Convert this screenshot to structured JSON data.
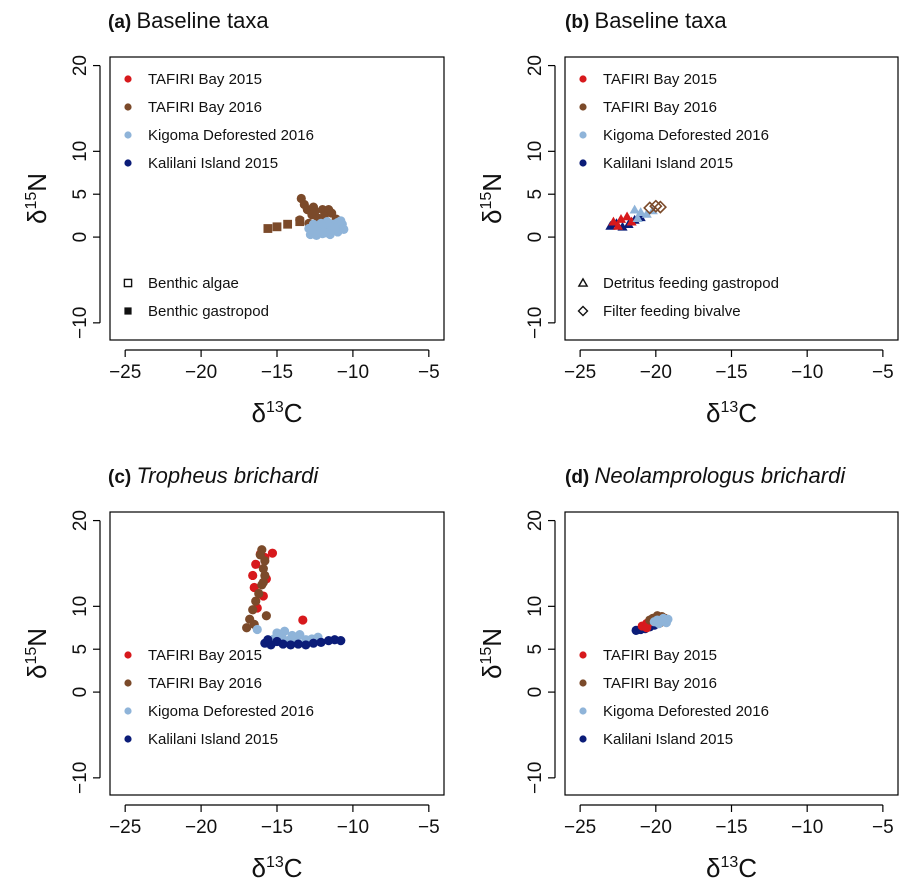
{
  "figure": {
    "colors": {
      "TAFIRI Bay 2015": "#d7191c",
      "TAFIRI Bay 2016": "#7b4a2a",
      "Kigoma Deforested 2016": "#8fb4d9",
      "Kalilani Island 2015": "#0b1c78"
    }
  },
  "chart_data": [
    {
      "type": "scatter",
      "panel": "(a)",
      "title": "Baseline taxa",
      "title_italic": false,
      "xlabel": "δ13C",
      "ylabel": "δ15N",
      "xlim": [
        -26,
        -4
      ],
      "ylim": [
        -12,
        21
      ],
      "xticks": [
        "−25",
        "−20",
        "−15",
        "−10",
        "−5"
      ],
      "xtick_values": [
        -25,
        -20,
        -15,
        -10,
        -5
      ],
      "yticks": [
        "20",
        "10",
        "5",
        "0",
        "−10"
      ],
      "ytick_values": [
        20,
        10,
        5,
        0,
        -10
      ],
      "grid": false,
      "legend": {
        "sites_position": "top-left",
        "sites": [
          "TAFIRI Bay 2015",
          "TAFIRI Bay 2016",
          "Kigoma Deforested 2016",
          "Kalilani Island 2015"
        ],
        "taxa_position": "bottom-left",
        "taxa": [
          {
            "label": "Benthic algae",
            "shape": "square-open"
          },
          {
            "label": "Benthic gastropod",
            "shape": "square-filled"
          }
        ]
      },
      "series": [
        {
          "name": "TAFIRI Bay 2016",
          "shape": "circle",
          "points": [
            [
              -13.4,
              4.5
            ],
            [
              -13.2,
              3.8
            ],
            [
              -13.0,
              3.2
            ],
            [
              -12.7,
              2.6
            ],
            [
              -12.3,
              2.2
            ],
            [
              -12.0,
              3.2
            ],
            [
              -11.8,
              3.0
            ],
            [
              -11.6,
              3.2
            ],
            [
              -11.4,
              2.8
            ],
            [
              -11.1,
              2.1
            ],
            [
              -12.9,
              1.6
            ],
            [
              -12.5,
              3.0
            ],
            [
              -13.5,
              2.0
            ],
            [
              -11.9,
              2.4
            ],
            [
              -12.6,
              3.5
            ]
          ]
        },
        {
          "name": "TAFIRI Bay 2016",
          "shape": "square",
          "points": [
            [
              -15.6,
              1.0
            ],
            [
              -15.0,
              1.2
            ],
            [
              -14.3,
              1.5
            ],
            [
              -13.5,
              1.8
            ]
          ]
        },
        {
          "name": "Kigoma Deforested 2016",
          "shape": "circle",
          "points": [
            [
              -12.8,
              0.3
            ],
            [
              -12.5,
              0.6
            ],
            [
              -12.2,
              0.9
            ],
            [
              -11.9,
              1.1
            ],
            [
              -11.6,
              1.3
            ],
            [
              -11.3,
              1.5
            ],
            [
              -11.0,
              1.7
            ],
            [
              -10.7,
              1.5
            ],
            [
              -12.9,
              1.0
            ],
            [
              -12.3,
              1.3
            ],
            [
              -11.8,
              0.5
            ],
            [
              -11.4,
              0.8
            ],
            [
              -11.0,
              0.6
            ],
            [
              -12.6,
              1.5
            ],
            [
              -11.7,
              1.8
            ],
            [
              -10.9,
              1.1
            ],
            [
              -12.4,
              0.2
            ],
            [
              -12.0,
              0.4
            ],
            [
              -11.2,
              1.0
            ],
            [
              -10.6,
              0.9
            ],
            [
              -12.7,
              0.8
            ],
            [
              -11.5,
              0.3
            ],
            [
              -12.1,
              1.6
            ],
            [
              -10.8,
              1.9
            ]
          ]
        }
      ]
    },
    {
      "type": "scatter",
      "panel": "(b)",
      "title": "Baseline taxa",
      "title_italic": false,
      "xlabel": "δ13C",
      "ylabel": "δ15N",
      "xlim": [
        -26,
        -4
      ],
      "ylim": [
        -12,
        21
      ],
      "xticks": [
        "−25",
        "−20",
        "−15",
        "−10",
        "−5"
      ],
      "xtick_values": [
        -25,
        -20,
        -15,
        -10,
        -5
      ],
      "yticks": [
        "20",
        "10",
        "5",
        "0",
        "−10"
      ],
      "ytick_values": [
        20,
        10,
        5,
        0,
        -10
      ],
      "grid": false,
      "legend": {
        "sites_position": "top-left",
        "sites": [
          "TAFIRI Bay 2015",
          "TAFIRI Bay 2016",
          "Kigoma Deforested 2016",
          "Kalilani Island 2015"
        ],
        "taxa_position": "bottom-left",
        "taxa": [
          {
            "label": "Detritus feeding gastropod",
            "shape": "triangle-open"
          },
          {
            "label": "Filter feeding bivalve",
            "shape": "diamond-open"
          }
        ]
      },
      "series": [
        {
          "name": "Kalilani Island 2015",
          "shape": "triangle",
          "points": [
            [
              -23.0,
              1.3
            ],
            [
              -22.6,
              1.6
            ],
            [
              -22.2,
              1.2
            ],
            [
              -21.8,
              1.5
            ],
            [
              -21.4,
              2.0
            ],
            [
              -21.0,
              2.3
            ]
          ]
        },
        {
          "name": "TAFIRI Bay 2015",
          "shape": "triangle",
          "points": [
            [
              -22.8,
              1.8
            ],
            [
              -22.3,
              2.1
            ],
            [
              -21.9,
              2.4
            ],
            [
              -22.5,
              1.3
            ],
            [
              -21.6,
              1.8
            ]
          ]
        },
        {
          "name": "Kigoma Deforested 2016",
          "shape": "triangle",
          "points": [
            [
              -21.4,
              3.2
            ],
            [
              -21.0,
              2.9
            ],
            [
              -20.6,
              2.7
            ],
            [
              -20.2,
              3.1
            ],
            [
              -21.2,
              2.2
            ]
          ]
        },
        {
          "name": "TAFIRI Bay 2016",
          "shape": "diamond",
          "points": [
            [
              -20.4,
              3.4
            ],
            [
              -20.0,
              3.6
            ],
            [
              -19.7,
              3.5
            ]
          ]
        }
      ]
    },
    {
      "type": "scatter",
      "panel": "(c)",
      "title": "Tropheus brichardi",
      "title_italic": true,
      "xlabel": "δ13C",
      "ylabel": "δ15N",
      "xlim": [
        -26,
        -4
      ],
      "ylim": [
        -12,
        21
      ],
      "xticks": [
        "−25",
        "−20",
        "−15",
        "−10",
        "−5"
      ],
      "xtick_values": [
        -25,
        -20,
        -15,
        -10,
        -5
      ],
      "yticks": [
        "20",
        "10",
        "5",
        "0",
        "−10"
      ],
      "ytick_values": [
        20,
        10,
        5,
        0,
        -10
      ],
      "grid": false,
      "legend": {
        "sites_position": "bottom-left",
        "sites": [
          "TAFIRI Bay 2015",
          "TAFIRI Bay 2016",
          "Kigoma Deforested 2016",
          "Kalilani Island 2015"
        ]
      },
      "series": [
        {
          "name": "TAFIRI Bay 2015",
          "shape": "circle",
          "points": [
            [
              -16.4,
              14.9
            ],
            [
              -16.1,
              16.1
            ],
            [
              -15.8,
              15.7
            ],
            [
              -15.3,
              16.2
            ],
            [
              -16.6,
              13.6
            ],
            [
              -15.9,
              11.2
            ],
            [
              -16.3,
              9.8
            ],
            [
              -13.3,
              8.4
            ],
            [
              -15.7,
              13.2
            ],
            [
              -16.5,
              12.2
            ]
          ]
        },
        {
          "name": "TAFIRI Bay 2016",
          "shape": "circle",
          "points": [
            [
              -16.0,
              16.6
            ],
            [
              -15.8,
              15.3
            ],
            [
              -15.9,
              14.4
            ],
            [
              -15.8,
              13.6
            ],
            [
              -16.0,
              12.5
            ],
            [
              -16.2,
              11.5
            ],
            [
              -16.4,
              10.6
            ],
            [
              -16.6,
              9.6
            ],
            [
              -16.8,
              8.5
            ],
            [
              -17.0,
              7.5
            ],
            [
              -16.5,
              7.9
            ],
            [
              -15.7,
              8.9
            ],
            [
              -16.1,
              16.0
            ],
            [
              -15.9,
              12.8
            ]
          ]
        },
        {
          "name": "Kigoma Deforested 2016",
          "shape": "circle",
          "points": [
            [
              -15.7,
              5.8
            ],
            [
              -15.2,
              6.2
            ],
            [
              -14.7,
              6.5
            ],
            [
              -14.3,
              6.0
            ],
            [
              -13.9,
              6.3
            ],
            [
              -13.5,
              6.7
            ],
            [
              -13.1,
              6.1
            ],
            [
              -12.7,
              6.2
            ],
            [
              -15.0,
              6.9
            ],
            [
              -14.5,
              7.1
            ],
            [
              -16.3,
              7.3
            ],
            [
              -13.7,
              5.9
            ],
            [
              -14.0,
              6.6
            ],
            [
              -12.3,
              6.4
            ]
          ]
        },
        {
          "name": "Kalilani Island 2015",
          "shape": "circle",
          "points": [
            [
              -15.8,
              5.7
            ],
            [
              -15.4,
              5.5
            ],
            [
              -15.0,
              5.9
            ],
            [
              -14.6,
              5.6
            ],
            [
              -14.1,
              5.5
            ],
            [
              -13.6,
              5.6
            ],
            [
              -13.1,
              5.5
            ],
            [
              -12.6,
              5.7
            ],
            [
              -12.1,
              5.8
            ],
            [
              -11.6,
              6.0
            ],
            [
              -11.2,
              6.1
            ],
            [
              -10.8,
              6.0
            ],
            [
              -15.6,
              6.1
            ]
          ]
        }
      ]
    },
    {
      "type": "scatter",
      "panel": "(d)",
      "title": "Neolamprologus brichardi",
      "title_italic": true,
      "xlabel": "δ13C",
      "ylabel": "δ15N",
      "xlim": [
        -26,
        -4
      ],
      "ylim": [
        -12,
        21
      ],
      "xticks": [
        "−25",
        "−20",
        "−15",
        "−10",
        "−5"
      ],
      "xtick_values": [
        -25,
        -20,
        -15,
        -10,
        -5
      ],
      "yticks": [
        "20",
        "10",
        "5",
        "0",
        "−10"
      ],
      "ytick_values": [
        20,
        10,
        5,
        0,
        -10
      ],
      "grid": false,
      "legend": {
        "sites_position": "bottom-left",
        "sites": [
          "TAFIRI Bay 2015",
          "TAFIRI Bay 2016",
          "Kigoma Deforested 2016",
          "Kalilani Island 2015"
        ]
      },
      "series": [
        {
          "name": "Kalilani Island 2015",
          "shape": "circle",
          "points": [
            [
              -21.3,
              7.2
            ],
            [
              -21.0,
              7.3
            ],
            [
              -20.7,
              7.4
            ],
            [
              -20.4,
              7.6
            ],
            [
              -20.1,
              7.8
            ],
            [
              -19.8,
              8.0
            ]
          ]
        },
        {
          "name": "TAFIRI Bay 2015",
          "shape": "circle",
          "points": [
            [
              -20.9,
              7.7
            ],
            [
              -20.6,
              8.0
            ],
            [
              -20.3,
              8.2
            ],
            [
              -20.6,
              7.5
            ],
            [
              -20.0,
              8.4
            ]
          ]
        },
        {
          "name": "TAFIRI Bay 2016",
          "shape": "circle",
          "points": [
            [
              -20.2,
              8.6
            ],
            [
              -19.9,
              8.9
            ],
            [
              -19.6,
              8.8
            ],
            [
              -19.4,
              8.6
            ],
            [
              -20.4,
              8.4
            ],
            [
              -19.7,
              8.1
            ]
          ]
        },
        {
          "name": "Kigoma Deforested 2016",
          "shape": "circle",
          "points": [
            [
              -19.9,
              8.4
            ],
            [
              -19.6,
              8.3
            ],
            [
              -19.3,
              8.1
            ],
            [
              -19.5,
              8.6
            ],
            [
              -19.8,
              8.0
            ],
            [
              -19.2,
              8.5
            ],
            [
              -20.1,
              8.2
            ]
          ]
        }
      ]
    }
  ]
}
